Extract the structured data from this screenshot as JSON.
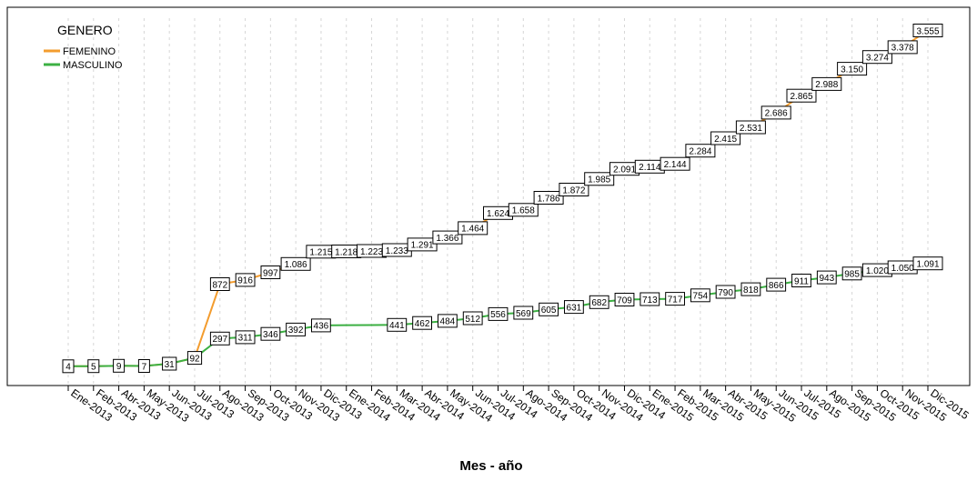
{
  "chart_data": {
    "type": "line",
    "xlabel": "Mes - año",
    "ylabel": "",
    "grid": true,
    "legend_position": "top-left",
    "legend_title": "GENERO",
    "categories": [
      "Ene-2013",
      "Feb-2013",
      "Abr-2013",
      "May-2013",
      "Jun-2013",
      "Jul-2013",
      "Ago-2013",
      "Sep-2013",
      "Oct-2013",
      "Nov-2013",
      "Dic-2013",
      "Ene-2014",
      "Feb-2014",
      "Mar-2014",
      "Abr-2014",
      "May-2014",
      "Jun-2014",
      "Jul-2014",
      "Ago-2014",
      "Sep-2014",
      "Oct-2014",
      "Nov-2014",
      "Dic-2014",
      "Ene-2015",
      "Feb-2015",
      "Mar-2015",
      "Abr-2015",
      "May-2015",
      "Jun-2015",
      "Jul-2015",
      "Ago-2015",
      "Sep-2015",
      "Oct-2015",
      "Nov-2015",
      "Dic-2015"
    ],
    "series": [
      {
        "name": "FEMENINO",
        "color": "#f39c2e",
        "values": [
          4,
          5,
          9,
          7,
          31,
          92,
          872,
          916,
          997,
          1086,
          1215,
          1218,
          1223,
          1233,
          1291,
          1366,
          1464,
          1624,
          1658,
          1786,
          1872,
          1985,
          2091,
          2114,
          2144,
          2284,
          2415,
          2531,
          2686,
          2865,
          2988,
          3150,
          3274,
          3378,
          3555
        ],
        "labels": [
          "4",
          "5",
          "9",
          "7",
          "31",
          "92",
          "872",
          "916",
          "997",
          "1.086",
          "1.215",
          "1.218",
          "1.223",
          "1.233",
          "1.291",
          "1.366",
          "1.464",
          "1.624",
          "1.658",
          "1.786",
          "1.872",
          "1.985",
          "2.091",
          "2.114",
          "2.144",
          "2.284",
          "2.415",
          "2.531",
          "2.686",
          "2.865",
          "2.988",
          "3.150",
          "3.274",
          "3.378",
          "3.555"
        ],
        "labeled_indices": [
          6,
          7,
          8,
          9,
          10,
          11,
          12,
          13,
          14,
          15,
          16,
          17,
          18,
          19,
          20,
          21,
          22,
          23,
          24,
          25,
          26,
          27,
          28,
          29,
          30,
          31,
          32,
          33,
          34
        ]
      },
      {
        "name": "MASCULINO",
        "color": "#3cb043",
        "values": [
          4,
          5,
          9,
          7,
          31,
          92,
          297,
          311,
          346,
          392,
          436,
          438,
          439,
          441,
          462,
          484,
          512,
          556,
          569,
          605,
          631,
          682,
          709,
          713,
          717,
          754,
          790,
          818,
          866,
          911,
          943,
          985,
          1020,
          1050,
          1091
        ],
        "labels": [
          "4",
          "5",
          "9",
          "7",
          "31",
          "92",
          "297",
          "311",
          "346",
          "392",
          "436",
          "",
          "",
          "441",
          "462",
          "484",
          "512",
          "556",
          "569",
          "605",
          "631",
          "682",
          "709",
          "713",
          "717",
          "754",
          "790",
          "818",
          "866",
          "911",
          "943",
          "985",
          "1.020",
          "1.050",
          "1.091"
        ],
        "labeled_indices": [
          0,
          1,
          2,
          3,
          4,
          5,
          6,
          7,
          8,
          9,
          10,
          13,
          14,
          15,
          16,
          17,
          18,
          19,
          20,
          21,
          22,
          23,
          24,
          25,
          26,
          27,
          28,
          29,
          30,
          31,
          32,
          33,
          34
        ]
      }
    ],
    "ylim": [
      -200,
      3800
    ]
  }
}
